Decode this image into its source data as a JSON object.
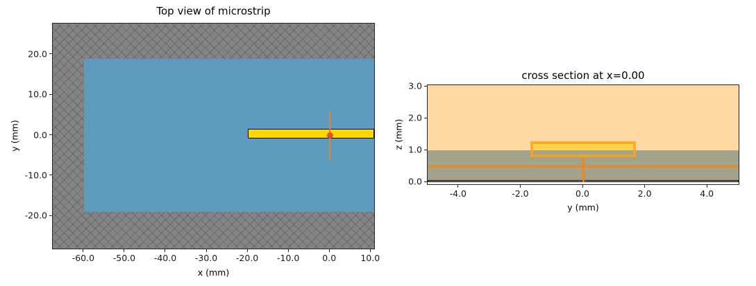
{
  "figure": {
    "background": "#ffffff",
    "spine_color": "#262626"
  },
  "chart_data": [
    {
      "type": "area",
      "title": "Top view of microstrip",
      "xlabel": "x (mm)",
      "ylabel": "y (mm)",
      "xlim": [
        -67.6,
        10.8
      ],
      "ylim": [
        -28.0,
        27.7
      ],
      "grid": false,
      "xticks": {
        "values": [
          -60,
          -50,
          -40,
          -30,
          -20,
          -10,
          0,
          10
        ],
        "labels": [
          "-60.0",
          "-50.0",
          "-40.0",
          "-30.0",
          "-20.0",
          "-10.0",
          "0.0",
          "10.0"
        ]
      },
      "yticks": {
        "values": [
          20,
          10,
          0,
          -10,
          -20
        ],
        "labels": [
          "20.0",
          "10.0",
          "0.0",
          "-10.0",
          "-20.0"
        ]
      },
      "regions": [
        {
          "name": "substrate-hatched-region",
          "x": [
            -67.6,
            10.8
          ],
          "y": [
            -28.0,
            27.7
          ],
          "fill": "#848484",
          "hatch": true
        },
        {
          "name": "ground-plane-region",
          "x": [
            -60.0,
            10.8
          ],
          "y": [
            -19.0,
            19.0
          ],
          "fill": "#5e99be"
        },
        {
          "name": "microstrip-trace",
          "x": [
            -20.0,
            10.8
          ],
          "y": [
            -0.75,
            1.65
          ],
          "fill": "#ffd700",
          "edge": "#000000",
          "edgeWidth": 1.5
        }
      ],
      "lines": [
        {
          "name": "port-marker-line",
          "orient": "v",
          "at": 0.0,
          "from": -6.0,
          "to": 6.0,
          "color": "rgba(255,127,14,0.85)",
          "width": 2
        }
      ],
      "points": [
        {
          "name": "port-marker-point",
          "x": 0.0,
          "y": 0.0,
          "r": 4.5,
          "color": "#e05535"
        }
      ]
    },
    {
      "type": "area",
      "title": "cross section at x=0.00",
      "xlabel": "y (mm)",
      "ylabel": "z (mm)",
      "xlim": [
        -5.0,
        5.0
      ],
      "ylim": [
        -0.06,
        3.05
      ],
      "grid": false,
      "xticks": {
        "values": [
          -4,
          -2,
          0,
          2,
          4
        ],
        "labels": [
          "-4.0",
          "-2.0",
          "0.0",
          "2.0",
          "4.0"
        ]
      },
      "yticks": {
        "values": [
          3,
          2,
          1,
          0
        ],
        "labels": [
          "3.0",
          "2.0",
          "1.0",
          "0.0"
        ]
      },
      "regions": [
        {
          "name": "air-region",
          "x": [
            -5.0,
            5.0
          ],
          "y": [
            0.0,
            3.05
          ],
          "fill": "#ffd9a3"
        },
        {
          "name": "substrate-cross-section",
          "x": [
            -5.0,
            5.0
          ],
          "y": [
            0.0,
            1.0
          ],
          "fill": "#a1a48b"
        },
        {
          "name": "ground-plane-cross-section",
          "x": [
            -5.0,
            5.0
          ],
          "y": [
            0.0,
            0.08
          ],
          "fill": "#bfae3d",
          "edge": "#000000",
          "edgeWidth": 1
        },
        {
          "name": "trace-cross-section",
          "x": [
            -1.6,
            1.6
          ],
          "y": [
            1.0,
            1.27
          ],
          "fill": "#ffd24d"
        },
        {
          "name": "port-outline",
          "x": [
            -1.7,
            1.7
          ],
          "y": [
            0.78,
            1.28
          ],
          "fill": "transparent",
          "edge": "rgba(250,166,26,0.85)",
          "edgeWidth": 4
        }
      ],
      "lines": [
        {
          "name": "port-plane-line",
          "orient": "h",
          "at": 0.5,
          "from": -5.0,
          "to": 5.0,
          "color": "rgba(255,127,14,0.8)",
          "width": 3
        },
        {
          "name": "port-feed-line",
          "orient": "v",
          "at": 0.0,
          "from": 0.0,
          "to": 0.78,
          "color": "rgba(255,127,14,0.9)",
          "width": 3
        }
      ],
      "points": []
    }
  ]
}
